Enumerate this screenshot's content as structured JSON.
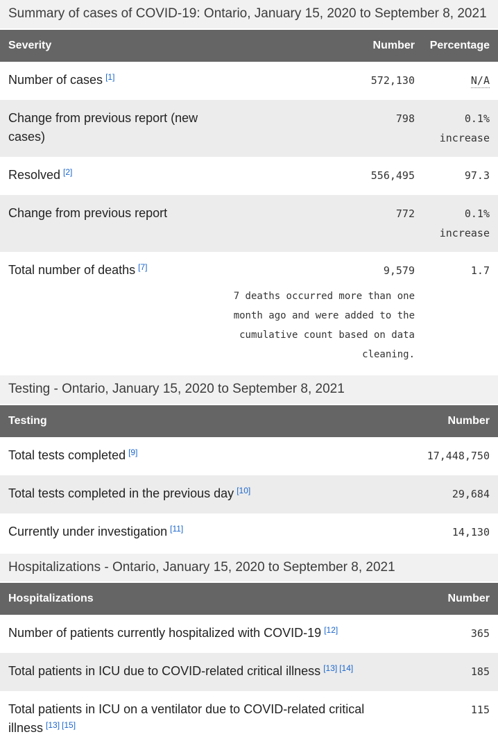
{
  "summary": {
    "section_title": "Summary of cases of COVID-19: Ontario, January 15, 2020 to September 8, 2021",
    "columns": {
      "severity": "Severity",
      "number": "Number",
      "percentage": "Percentage"
    },
    "rows": [
      {
        "label": "Number of cases",
        "fn": [
          "[1]"
        ],
        "number": "572,130",
        "percentage": "N/A"
      },
      {
        "label": "Change from previous report (new cases)",
        "number": "798",
        "percentage": "0.1% increase"
      },
      {
        "label": "Resolved",
        "fn": [
          "[2]"
        ],
        "number": "556,495",
        "percentage": "97.3"
      },
      {
        "label": "Change from previous report",
        "number": "772",
        "percentage": "0.1% increase"
      },
      {
        "label": "Total number of deaths",
        "fn": [
          "[7]"
        ],
        "number": "9,579",
        "number_note": "7 deaths occurred more than one month ago and were added to the cumulative count based on data cleaning.",
        "percentage": "1.7"
      }
    ]
  },
  "testing": {
    "section_title": "Testing - Ontario, January 15, 2020 to September 8, 2021",
    "columns": {
      "testing": "Testing",
      "number": "Number"
    },
    "rows": [
      {
        "label": "Total tests completed",
        "fn": [
          "[9]"
        ],
        "number": "17,448,750"
      },
      {
        "label": "Total tests completed in the previous day",
        "fn": [
          "[10]"
        ],
        "number": "29,684"
      },
      {
        "label": "Currently under investigation",
        "fn": [
          "[11]"
        ],
        "number": "14,130"
      }
    ]
  },
  "hospitalizations": {
    "section_title": "Hospitalizations - Ontario, January 15, 2020 to September 8, 2021",
    "columns": {
      "hospitalizations": "Hospitalizations",
      "number": "Number"
    },
    "rows": [
      {
        "label": "Number of patients currently hospitalized with COVID-19",
        "fn": [
          "[12]"
        ],
        "number": "365"
      },
      {
        "label": "Total patients in ICU due to COVID-related critical illness",
        "fn": [
          "[13]",
          "[14]"
        ],
        "number": "185"
      },
      {
        "label": "Total patients in ICU on a ventilator due to COVID-related critical illness",
        "fn": [
          "[13]",
          "[15]"
        ],
        "number": "115"
      }
    ]
  },
  "colors": {
    "table_header_bg": "#656565",
    "table_header_text": "#ffffff",
    "section_band_bg": "#f1f1f1",
    "alt_row_bg": "#ececec",
    "footnote_link": "#1a66cc",
    "body_text": "#222222"
  }
}
